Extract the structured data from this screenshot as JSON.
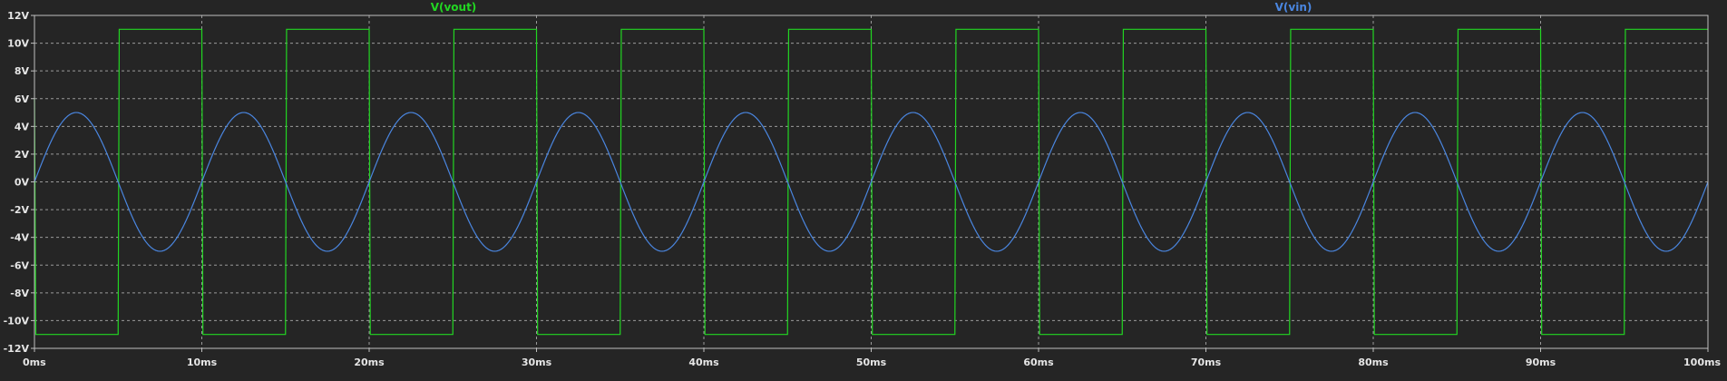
{
  "chart_data": {
    "type": "line",
    "x_unit": "ms",
    "y_unit": "V",
    "xlim": [
      0,
      100
    ],
    "ylim": [
      -12,
      12
    ],
    "x_ticks": [
      0,
      10,
      20,
      30,
      40,
      50,
      60,
      70,
      80,
      90,
      100
    ],
    "x_tick_labels": [
      "0ms",
      "10ms",
      "20ms",
      "30ms",
      "40ms",
      "50ms",
      "60ms",
      "70ms",
      "80ms",
      "90ms",
      "100ms"
    ],
    "y_ticks": [
      12,
      10,
      8,
      6,
      4,
      2,
      0,
      -2,
      -4,
      -6,
      -8,
      -10,
      -12
    ],
    "y_tick_labels": [
      "12V",
      "10V",
      "8V",
      "6V",
      "4V",
      "2V",
      "0V",
      "-2V",
      "-4V",
      "-6V",
      "-8V",
      "-10V",
      "-12V"
    ],
    "grid": true,
    "background": "#252525",
    "axis_color": "#c0c0c0",
    "grid_color": "#9a9a9a",
    "series": [
      {
        "name": "V(vout)",
        "color": "#22d622",
        "shape": "square",
        "high": 11,
        "low": -11,
        "transitions_ms": [
          0,
          5,
          10,
          15,
          20,
          25,
          30,
          35,
          40,
          45,
          50,
          55,
          60,
          65,
          70,
          75,
          80,
          85,
          90,
          95
        ],
        "starts_low_after": 0
      },
      {
        "name": "V(vin)",
        "color": "#4a86e0",
        "shape": "sine",
        "amplitude": 5,
        "frequency_hz": 100,
        "offset": 0
      }
    ],
    "legend": [
      {
        "label": "V(vout)",
        "color": "#22d622"
      },
      {
        "label": "V(vin)",
        "color": "#4a86e0"
      }
    ]
  }
}
